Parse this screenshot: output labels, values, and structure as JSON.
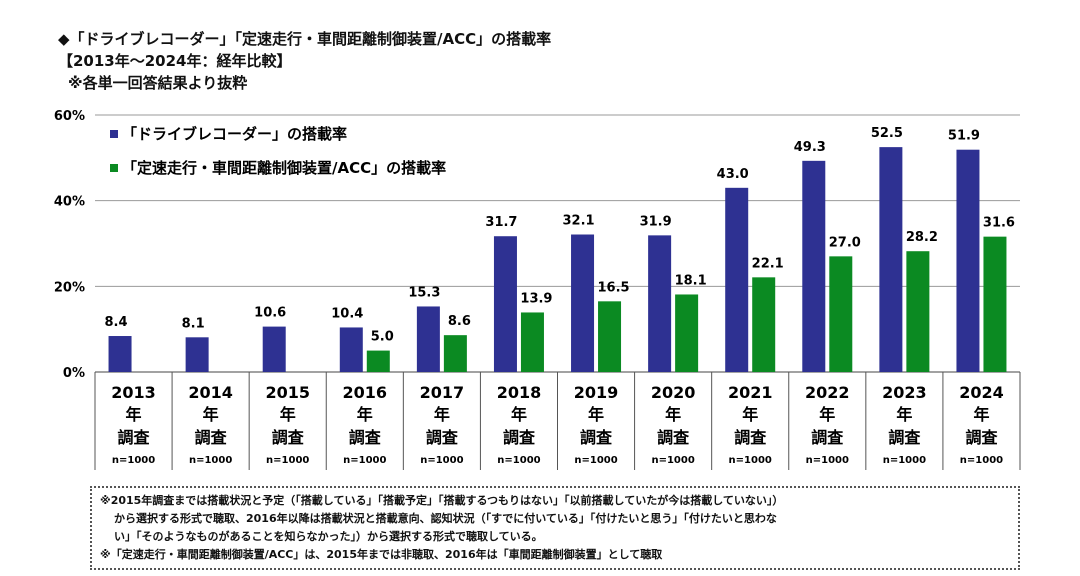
{
  "header": {
    "title": "◆「ドライブレコーダー」「定速走行・車間距離制御装置/ACC」の搭載率",
    "subtitle": "【2013年～2024年：経年比較】",
    "note": "※各単一回答結果より抜粋"
  },
  "chart_data": {
    "type": "bar",
    "categories": [
      "2013",
      "2014",
      "2015",
      "2016",
      "2017",
      "2018",
      "2019",
      "2020",
      "2021",
      "2022",
      "2023",
      "2024"
    ],
    "category_suffix_1": "年",
    "category_suffix_2": "調査",
    "sample_label": "n=1000",
    "series": [
      {
        "name": "「ドライブレコーダー」の搭載率",
        "color": "#2e3192",
        "values": [
          8.4,
          8.1,
          10.6,
          10.4,
          15.3,
          31.7,
          32.1,
          31.9,
          43.0,
          49.3,
          52.5,
          51.9
        ]
      },
      {
        "name": "「定速走行・車間距離制御装置/ACC」の搭載率",
        "color": "#0b8a22",
        "values": [
          null,
          null,
          null,
          5.0,
          8.6,
          13.9,
          16.5,
          18.1,
          22.1,
          27.0,
          28.2,
          31.6
        ]
      }
    ],
    "ylim": [
      0,
      60
    ],
    "yticks": [
      "0%",
      "20%",
      "40%",
      "60%"
    ],
    "grid": true,
    "legend": "top-left"
  },
  "footnotes": [
    "※2015年調査までは搭載状況と予定（「搭載している」「搭載予定」「搭載するつもりはない」「以前搭載していたが今は搭載していない」）",
    "から選択する形式で聴取、2016年以降は搭載状況と搭載意向、認知状況（「すでに付いている」「付けたいと思う」「付けたいと思わな",
    "い」「そのようなものがあることを知らなかった」）から選択する形式で聴取している。",
    "※「定速走行・車間距離制御装置/ACC」は、2015年までは非聴取、2016年は「車間距離制御装置」として聴取"
  ]
}
